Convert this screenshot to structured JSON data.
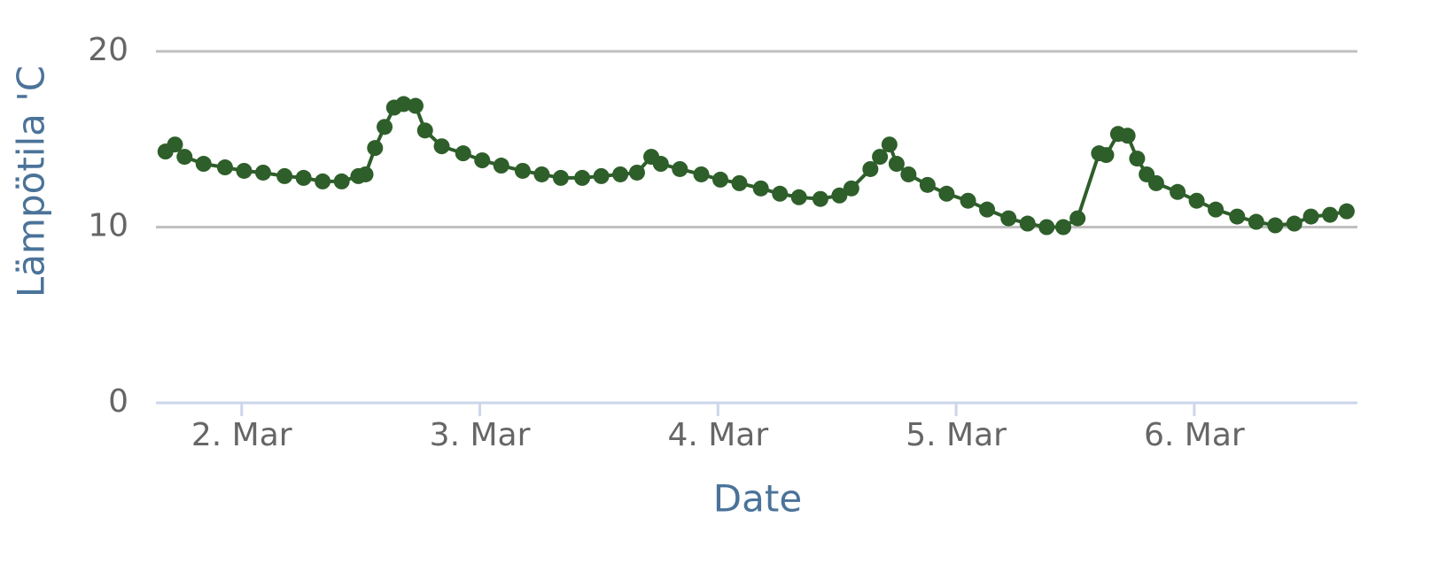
{
  "chart_data": {
    "type": "line",
    "xlabel": "Date",
    "ylabel": "Lämpötila 'C",
    "color": "#2e5e2a",
    "grid": true,
    "x": [
      1.68,
      1.72,
      1.76,
      1.84,
      1.93,
      2.01,
      2.09,
      2.18,
      2.26,
      2.34,
      2.42,
      2.49,
      2.52,
      2.56,
      2.6,
      2.64,
      2.68,
      2.73,
      2.77,
      2.84,
      2.93,
      3.01,
      3.09,
      3.18,
      3.26,
      3.34,
      3.43,
      3.51,
      3.59,
      3.66,
      3.72,
      3.76,
      3.84,
      3.93,
      4.01,
      4.09,
      4.18,
      4.26,
      4.34,
      4.43,
      4.51,
      4.56,
      4.64,
      4.68,
      4.72,
      4.75,
      4.8,
      4.88,
      4.96,
      5.05,
      5.13,
      5.22,
      5.3,
      5.38,
      5.45,
      5.51,
      5.6,
      5.63,
      5.68,
      5.72,
      5.76,
      5.8,
      5.84,
      5.93,
      6.01,
      6.09,
      6.18,
      6.26,
      6.34,
      6.42,
      6.49,
      6.57,
      6.64
    ],
    "values": [
      14.3,
      14.7,
      14.0,
      13.6,
      13.4,
      13.2,
      13.1,
      12.9,
      12.8,
      12.6,
      12.6,
      12.9,
      13.0,
      14.5,
      15.7,
      16.8,
      17.0,
      16.9,
      15.5,
      14.6,
      14.2,
      13.8,
      13.5,
      13.2,
      13.0,
      12.8,
      12.8,
      12.9,
      13.0,
      13.1,
      14.0,
      13.6,
      13.3,
      13.0,
      12.7,
      12.5,
      12.2,
      11.9,
      11.7,
      11.6,
      11.8,
      12.2,
      13.3,
      14.0,
      14.7,
      13.6,
      13.0,
      12.4,
      11.9,
      11.5,
      11.0,
      10.5,
      10.2,
      10.0,
      10.0,
      10.5,
      14.2,
      14.1,
      15.3,
      15.2,
      13.9,
      13.0,
      12.5,
      12.0,
      11.5,
      11.0,
      10.6,
      10.3,
      10.1,
      10.2,
      10.6,
      10.7,
      10.9
    ],
    "xlim": [
      1.64,
      6.685
    ],
    "xticks": [
      {
        "value": 2,
        "label": "2. Mar"
      },
      {
        "value": 3,
        "label": "3. Mar"
      },
      {
        "value": 4,
        "label": "4. Mar"
      },
      {
        "value": 5,
        "label": "5. Mar"
      },
      {
        "value": 6,
        "label": "6. Mar"
      }
    ],
    "ylim": [
      0,
      20
    ],
    "yticks": [
      0,
      10,
      20
    ]
  }
}
